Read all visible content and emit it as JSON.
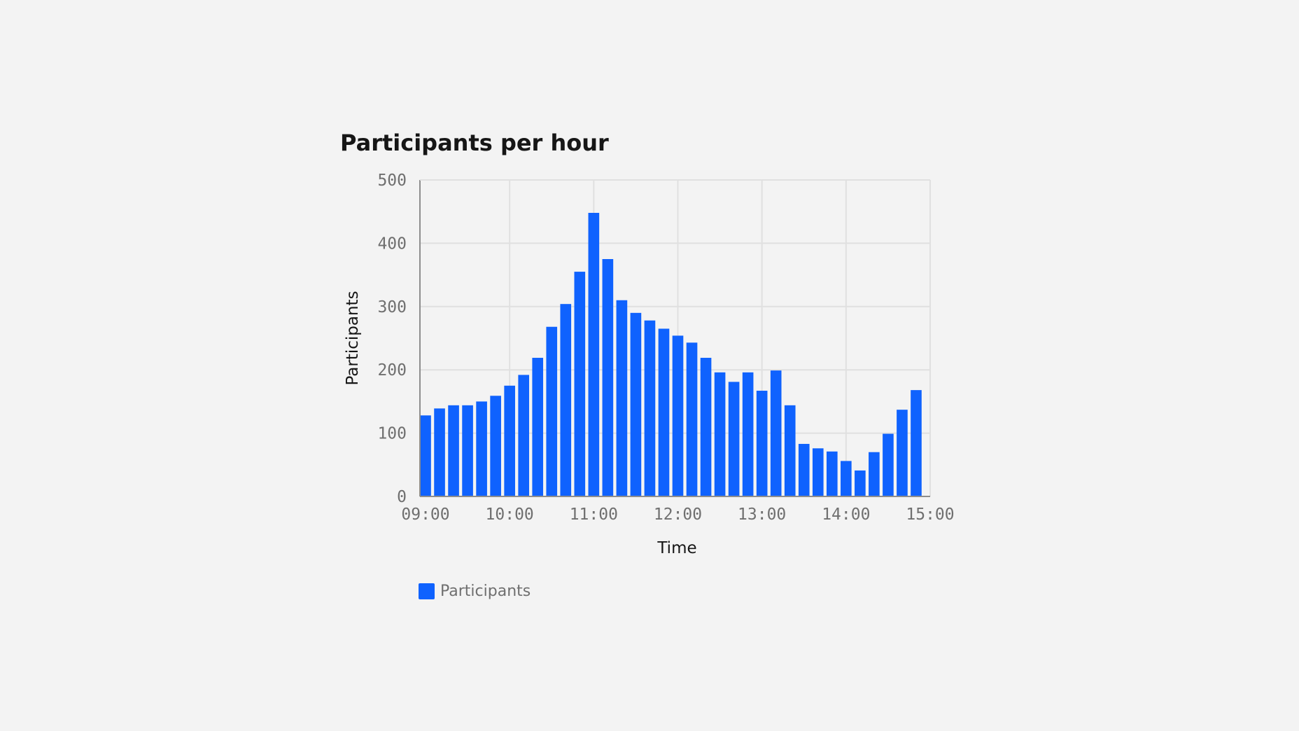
{
  "chart_data": {
    "type": "bar",
    "title": "Participants per hour",
    "xlabel": "Time",
    "ylabel": "Participants",
    "ylim": [
      0,
      500
    ],
    "yticks": [
      "0",
      "100",
      "200",
      "300",
      "400",
      "500"
    ],
    "xticks": [
      "09:00",
      "10:00",
      "11:00",
      "12:00",
      "13:00",
      "14:00",
      "15:00"
    ],
    "xlim": [
      "08:56",
      "15:00"
    ],
    "grid": true,
    "legend_placement": "bottom-left",
    "series": [
      {
        "name": "Participants",
        "color": "#0f62fe",
        "x": [
          "09:00",
          "09:10",
          "09:20",
          "09:30",
          "09:40",
          "09:50",
          "10:00",
          "10:10",
          "10:20",
          "10:30",
          "10:40",
          "10:50",
          "11:00",
          "11:10",
          "11:20",
          "11:30",
          "11:40",
          "11:50",
          "12:00",
          "12:10",
          "12:20",
          "12:30",
          "12:40",
          "12:50",
          "13:00",
          "13:10",
          "13:20",
          "13:30",
          "13:40",
          "13:50",
          "14:00",
          "14:10",
          "14:20",
          "14:30",
          "14:40",
          "14:50"
        ],
        "values": [
          128,
          139,
          144,
          144,
          150,
          159,
          175,
          192,
          219,
          268,
          304,
          355,
          448,
          375,
          310,
          290,
          278,
          265,
          254,
          243,
          219,
          196,
          181,
          196,
          167,
          199,
          144,
          83,
          76,
          71,
          56,
          41,
          70,
          99,
          137,
          168
        ]
      }
    ]
  }
}
